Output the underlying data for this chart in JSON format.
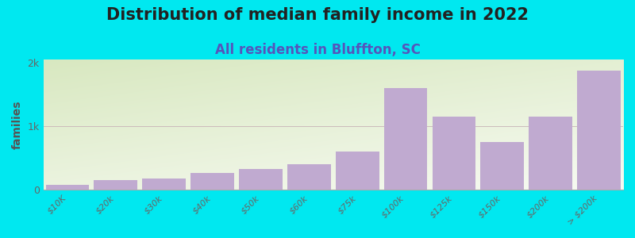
{
  "title": "Distribution of median family income in 2022",
  "subtitle": "All residents in Bluffton, SC",
  "categories": [
    "$10K",
    "$20k",
    "$30k",
    "$40k",
    "$50k",
    "$60k",
    "$75k",
    "$100k",
    "$125k",
    "$150k",
    "$200k",
    "> $200k"
  ],
  "values": [
    80,
    150,
    180,
    270,
    330,
    400,
    600,
    1600,
    1150,
    750,
    1150,
    1870
  ],
  "bar_color": "#c0aad0",
  "background_outer": "#00e8f0",
  "background_top_left": "#d8e8c0",
  "background_bottom_right": "#f8faf8",
  "ylabel": "families",
  "yticks": [
    0,
    1000,
    2000
  ],
  "ytick_labels": [
    "0",
    "1k",
    "2k"
  ],
  "ylim": [
    0,
    2050
  ],
  "title_fontsize": 15,
  "subtitle_fontsize": 12,
  "title_color": "#222222",
  "subtitle_color": "#5555bb",
  "axis_label_color": "#555555",
  "tick_label_color": "#666666",
  "grid_color": "#ccbbbb",
  "grid_linewidth": 0.7,
  "bar_width": 0.9
}
